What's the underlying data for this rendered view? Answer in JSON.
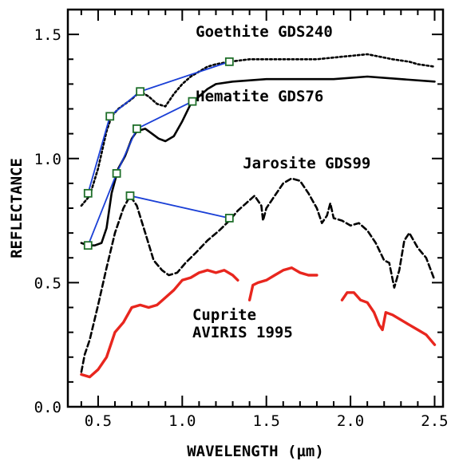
{
  "chart_data": {
    "type": "line",
    "title": "",
    "xlabel": "WAVELENGTH (µm)",
    "ylabel": "REFLECTANCE",
    "xlim": [
      0.32,
      2.55
    ],
    "ylim": [
      0.0,
      1.6
    ],
    "x_ticks": [
      0.5,
      1.0,
      1.5,
      2.0,
      2.5
    ],
    "x_tick_labels": [
      "0.5",
      "1.0",
      "1.5",
      "2.0",
      "2.5"
    ],
    "y_ticks": [
      0.0,
      0.5,
      1.0,
      1.5
    ],
    "y_tick_labels": [
      "0.0",
      "0.5",
      "1.0",
      "1.5"
    ],
    "grid": false,
    "series": [
      {
        "name": "Goethite GDS240",
        "label_lines": [
          "Goethite GDS240"
        ],
        "label_anchor": [
          1.08,
          1.49
        ],
        "style": "dotted",
        "color": "#000000",
        "segments": [
          [
            [
              0.4,
              0.81
            ],
            [
              0.45,
              0.85
            ],
            [
              0.5,
              0.96
            ],
            [
              0.55,
              1.11
            ],
            [
              0.58,
              1.17
            ],
            [
              0.62,
              1.2
            ],
            [
              0.66,
              1.22
            ],
            [
              0.7,
              1.24
            ],
            [
              0.75,
              1.27
            ],
            [
              0.8,
              1.25
            ],
            [
              0.85,
              1.22
            ],
            [
              0.9,
              1.21
            ],
            [
              0.95,
              1.26
            ],
            [
              1.0,
              1.3
            ],
            [
              1.05,
              1.33
            ],
            [
              1.1,
              1.35
            ],
            [
              1.15,
              1.37
            ],
            [
              1.2,
              1.38
            ],
            [
              1.28,
              1.39
            ],
            [
              1.4,
              1.4
            ],
            [
              1.6,
              1.4
            ],
            [
              1.8,
              1.4
            ],
            [
              1.95,
              1.41
            ],
            [
              2.1,
              1.42
            ],
            [
              2.25,
              1.4
            ],
            [
              2.35,
              1.39
            ],
            [
              2.4,
              1.38
            ],
            [
              2.5,
              1.37
            ]
          ]
        ]
      },
      {
        "name": "Hematite GDS76",
        "label_lines": [
          "Hematite GDS76"
        ],
        "label_anchor": [
          1.08,
          1.23
        ],
        "style": "solid",
        "color": "#000000",
        "segments": [
          [
            [
              0.4,
              0.66
            ],
            [
              0.44,
              0.65
            ],
            [
              0.48,
              0.65
            ],
            [
              0.52,
              0.66
            ],
            [
              0.55,
              0.72
            ],
            [
              0.58,
              0.86
            ],
            [
              0.62,
              0.96
            ],
            [
              0.66,
              1.01
            ],
            [
              0.7,
              1.08
            ],
            [
              0.73,
              1.11
            ],
            [
              0.78,
              1.12
            ],
            [
              0.82,
              1.1
            ],
            [
              0.86,
              1.08
            ],
            [
              0.9,
              1.07
            ],
            [
              0.95,
              1.09
            ],
            [
              1.0,
              1.15
            ],
            [
              1.05,
              1.22
            ],
            [
              1.1,
              1.25
            ],
            [
              1.15,
              1.28
            ],
            [
              1.2,
              1.3
            ],
            [
              1.3,
              1.31
            ],
            [
              1.5,
              1.32
            ],
            [
              1.7,
              1.32
            ],
            [
              1.9,
              1.32
            ],
            [
              2.1,
              1.33
            ],
            [
              2.3,
              1.32
            ],
            [
              2.5,
              1.31
            ]
          ]
        ]
      },
      {
        "name": "Jarosite GDS99",
        "label_lines": [
          "Jarosite GDS99"
        ],
        "label_anchor": [
          1.36,
          0.96
        ],
        "style": "dashed",
        "color": "#000000",
        "segments": [
          [
            [
              0.4,
              0.14
            ],
            [
              0.42,
              0.21
            ],
            [
              0.45,
              0.27
            ],
            [
              0.5,
              0.41
            ],
            [
              0.55,
              0.56
            ],
            [
              0.6,
              0.7
            ],
            [
              0.65,
              0.8
            ],
            [
              0.69,
              0.85
            ],
            [
              0.73,
              0.81
            ],
            [
              0.78,
              0.7
            ],
            [
              0.83,
              0.59
            ],
            [
              0.88,
              0.55
            ],
            [
              0.92,
              0.53
            ],
            [
              0.97,
              0.54
            ],
            [
              1.02,
              0.58
            ],
            [
              1.08,
              0.62
            ],
            [
              1.15,
              0.67
            ],
            [
              1.22,
              0.71
            ],
            [
              1.28,
              0.75
            ],
            [
              1.33,
              0.79
            ],
            [
              1.38,
              0.82
            ],
            [
              1.43,
              0.85
            ],
            [
              1.47,
              0.81
            ],
            [
              1.48,
              0.75
            ],
            [
              1.5,
              0.8
            ],
            [
              1.55,
              0.85
            ],
            [
              1.6,
              0.9
            ],
            [
              1.65,
              0.92
            ],
            [
              1.7,
              0.91
            ],
            [
              1.75,
              0.86
            ],
            [
              1.8,
              0.8
            ],
            [
              1.83,
              0.74
            ],
            [
              1.86,
              0.77
            ],
            [
              1.88,
              0.82
            ],
            [
              1.9,
              0.76
            ],
            [
              1.95,
              0.75
            ],
            [
              2.0,
              0.73
            ],
            [
              2.05,
              0.74
            ],
            [
              2.1,
              0.71
            ],
            [
              2.15,
              0.66
            ],
            [
              2.2,
              0.59
            ],
            [
              2.23,
              0.58
            ],
            [
              2.26,
              0.48
            ],
            [
              2.29,
              0.55
            ],
            [
              2.32,
              0.67
            ],
            [
              2.35,
              0.7
            ],
            [
              2.4,
              0.64
            ],
            [
              2.45,
              0.6
            ],
            [
              2.5,
              0.51
            ]
          ]
        ]
      },
      {
        "name": "Cuprite AVIRIS 1995",
        "label_lines": [
          "Cuprite",
          "AVIRIS 1995"
        ],
        "label_anchor": [
          1.06,
          0.35
        ],
        "style": "solid",
        "color": "#e8261e",
        "segments": [
          [
            [
              0.4,
              0.13
            ],
            [
              0.45,
              0.12
            ],
            [
              0.5,
              0.15
            ],
            [
              0.55,
              0.2
            ],
            [
              0.6,
              0.3
            ],
            [
              0.65,
              0.34
            ],
            [
              0.7,
              0.4
            ],
            [
              0.75,
              0.41
            ],
            [
              0.8,
              0.4
            ],
            [
              0.85,
              0.41
            ],
            [
              0.9,
              0.44
            ],
            [
              0.95,
              0.47
            ],
            [
              1.0,
              0.51
            ],
            [
              1.05,
              0.52
            ],
            [
              1.1,
              0.54
            ],
            [
              1.15,
              0.55
            ],
            [
              1.2,
              0.54
            ],
            [
              1.25,
              0.55
            ],
            [
              1.3,
              0.53
            ],
            [
              1.33,
              0.51
            ]
          ],
          [
            [
              1.4,
              0.43
            ],
            [
              1.42,
              0.49
            ],
            [
              1.45,
              0.5
            ],
            [
              1.5,
              0.51
            ],
            [
              1.55,
              0.53
            ],
            [
              1.6,
              0.55
            ],
            [
              1.65,
              0.56
            ],
            [
              1.7,
              0.54
            ],
            [
              1.75,
              0.53
            ],
            [
              1.8,
              0.53
            ]
          ],
          [
            [
              1.95,
              0.43
            ],
            [
              1.98,
              0.46
            ],
            [
              2.02,
              0.46
            ],
            [
              2.06,
              0.43
            ],
            [
              2.1,
              0.42
            ],
            [
              2.14,
              0.38
            ],
            [
              2.17,
              0.33
            ],
            [
              2.19,
              0.31
            ],
            [
              2.21,
              0.38
            ],
            [
              2.25,
              0.37
            ],
            [
              2.3,
              0.35
            ],
            [
              2.35,
              0.33
            ],
            [
              2.4,
              0.31
            ],
            [
              2.45,
              0.29
            ],
            [
              2.5,
              0.25
            ]
          ]
        ]
      }
    ],
    "band_markers": {
      "color": "#1f6f2a",
      "points": [
        [
          0.44,
          0.86
        ],
        [
          0.57,
          1.17
        ],
        [
          0.75,
          1.27
        ],
        [
          1.28,
          1.39
        ],
        [
          0.44,
          0.65
        ],
        [
          0.61,
          0.94
        ],
        [
          0.73,
          1.12
        ],
        [
          1.06,
          1.23
        ],
        [
          0.69,
          0.85
        ],
        [
          1.28,
          0.76
        ]
      ]
    },
    "band_lines": {
      "color": "#1a3fd6",
      "lines": [
        [
          [
            0.44,
            0.86
          ],
          [
            0.57,
            1.17
          ]
        ],
        [
          [
            0.57,
            1.17
          ],
          [
            0.75,
            1.27
          ]
        ],
        [
          [
            0.75,
            1.27
          ],
          [
            1.28,
            1.39
          ]
        ],
        [
          [
            0.44,
            0.65
          ],
          [
            0.61,
            0.94
          ]
        ],
        [
          [
            0.61,
            0.94
          ],
          [
            0.73,
            1.12
          ]
        ],
        [
          [
            0.73,
            1.12
          ],
          [
            1.06,
            1.23
          ]
        ],
        [
          [
            0.69,
            0.85
          ],
          [
            1.28,
            0.76
          ]
        ]
      ]
    }
  }
}
